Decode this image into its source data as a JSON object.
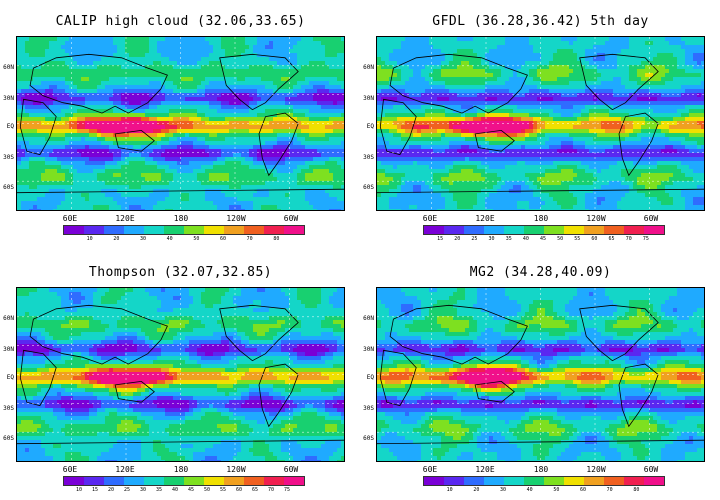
{
  "panels": [
    {
      "id": "calip",
      "title": "CALIP high cloud (32.06,33.65)",
      "lat_labels": [
        "60N",
        "30N",
        "EQ",
        "30S",
        "60S"
      ],
      "lon_labels": [
        "60E",
        "120E",
        "180",
        "120W",
        "60W"
      ],
      "colorbar_ticks": [
        "10",
        "20",
        "30",
        "40",
        "50",
        "60",
        "70",
        "80"
      ]
    },
    {
      "id": "gfdl",
      "title": "GFDL (36.28,36.42) 5th day",
      "lat_labels": [
        "60N",
        "30N",
        "EQ",
        "30S",
        "60S"
      ],
      "lon_labels": [
        "60E",
        "120E",
        "180",
        "120W",
        "60W"
      ],
      "colorbar_ticks": [
        "15",
        "20",
        "25",
        "30",
        "35",
        "40",
        "45",
        "50",
        "55",
        "60",
        "65",
        "70",
        "75"
      ]
    },
    {
      "id": "thompson",
      "title": "Thompson (32.07,32.85)",
      "lat_labels": [
        "60N",
        "30N",
        "EQ",
        "30S",
        "60S"
      ],
      "lon_labels": [
        "60E",
        "120E",
        "180",
        "120W",
        "60W"
      ],
      "colorbar_ticks": [
        "10",
        "15",
        "20",
        "25",
        "30",
        "35",
        "40",
        "45",
        "50",
        "55",
        "60",
        "65",
        "70",
        "75"
      ]
    },
    {
      "id": "mg2",
      "title": "MG2 (34.28,40.09)",
      "lat_labels": [
        "60N",
        "30N",
        "EQ",
        "30S",
        "60S"
      ],
      "lon_labels": [
        "60E",
        "120E",
        "180",
        "120W",
        "60W"
      ],
      "colorbar_ticks": [
        "10",
        "20",
        "30",
        "40",
        "50",
        "60",
        "70",
        "80"
      ]
    }
  ],
  "palette": [
    "#7a00d6",
    "#5a28f0",
    "#2f6cff",
    "#1faaff",
    "#14d6c8",
    "#18d070",
    "#7ee020",
    "#f0e000",
    "#f0a020",
    "#f06020",
    "#f02050",
    "#f0108a"
  ]
}
